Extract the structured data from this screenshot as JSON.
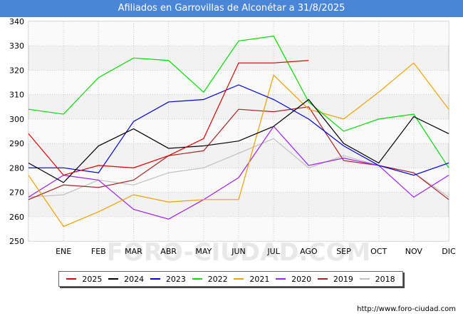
{
  "header": {
    "title": "Afiliados en Garrovillas de Alconétar a 31/8/2025"
  },
  "watermark": "FORO-CIUDAD.COM",
  "source": "http://www.foro-ciudad.com",
  "chart_data": {
    "type": "line",
    "title": "Afiliados en Garrovillas de Alconétar a 31/8/2025",
    "xlabel": "",
    "ylabel": "",
    "ylim": [
      250,
      340
    ],
    "yticks": [
      250,
      260,
      270,
      280,
      290,
      300,
      310,
      320,
      330,
      340
    ],
    "categories": [
      "",
      "ENE",
      "FEB",
      "MAR",
      "ABR",
      "MAY",
      "JUN",
      "JUL",
      "AGO",
      "SEP",
      "OCT",
      "NOV",
      "DIC"
    ],
    "grid": true,
    "legend_position": "bottom",
    "series": [
      {
        "name": "2025",
        "color": "#dd0000",
        "values": [
          294,
          277,
          281,
          280,
          285,
          292,
          323,
          323,
          324,
          null,
          null,
          null,
          null
        ]
      },
      {
        "name": "2024",
        "color": "#000000",
        "values": [
          282,
          274,
          289,
          296,
          288,
          289,
          291,
          297,
          308,
          290,
          282,
          301,
          294
        ]
      },
      {
        "name": "2023",
        "color": "#0000dd",
        "values": [
          280,
          280,
          278,
          299,
          307,
          308,
          314,
          308,
          300,
          289,
          281,
          277,
          282
        ]
      },
      {
        "name": "2022",
        "color": "#00dd00",
        "values": [
          304,
          302,
          317,
          325,
          324,
          311,
          332,
          334,
          307,
          295,
          300,
          302,
          280
        ]
      },
      {
        "name": "2021",
        "color": "#f0a000",
        "values": [
          277,
          256,
          262,
          269,
          266,
          267,
          267,
          318,
          304,
          300,
          311,
          323,
          304
        ]
      },
      {
        "name": "2020",
        "color": "#a020f0",
        "values": [
          268,
          277,
          275,
          263,
          259,
          267,
          276,
          297,
          281,
          284,
          281,
          268,
          277
        ]
      },
      {
        "name": "2019",
        "color": "#aa2222",
        "values": [
          267,
          273,
          272,
          275,
          285,
          287,
          304,
          303,
          305,
          283,
          281,
          278,
          267
        ]
      },
      {
        "name": "2018",
        "color": "#c0c0c0",
        "values": [
          268,
          269,
          275,
          273,
          278,
          280,
          286,
          292,
          280,
          285,
          281,
          278,
          268
        ]
      }
    ]
  }
}
